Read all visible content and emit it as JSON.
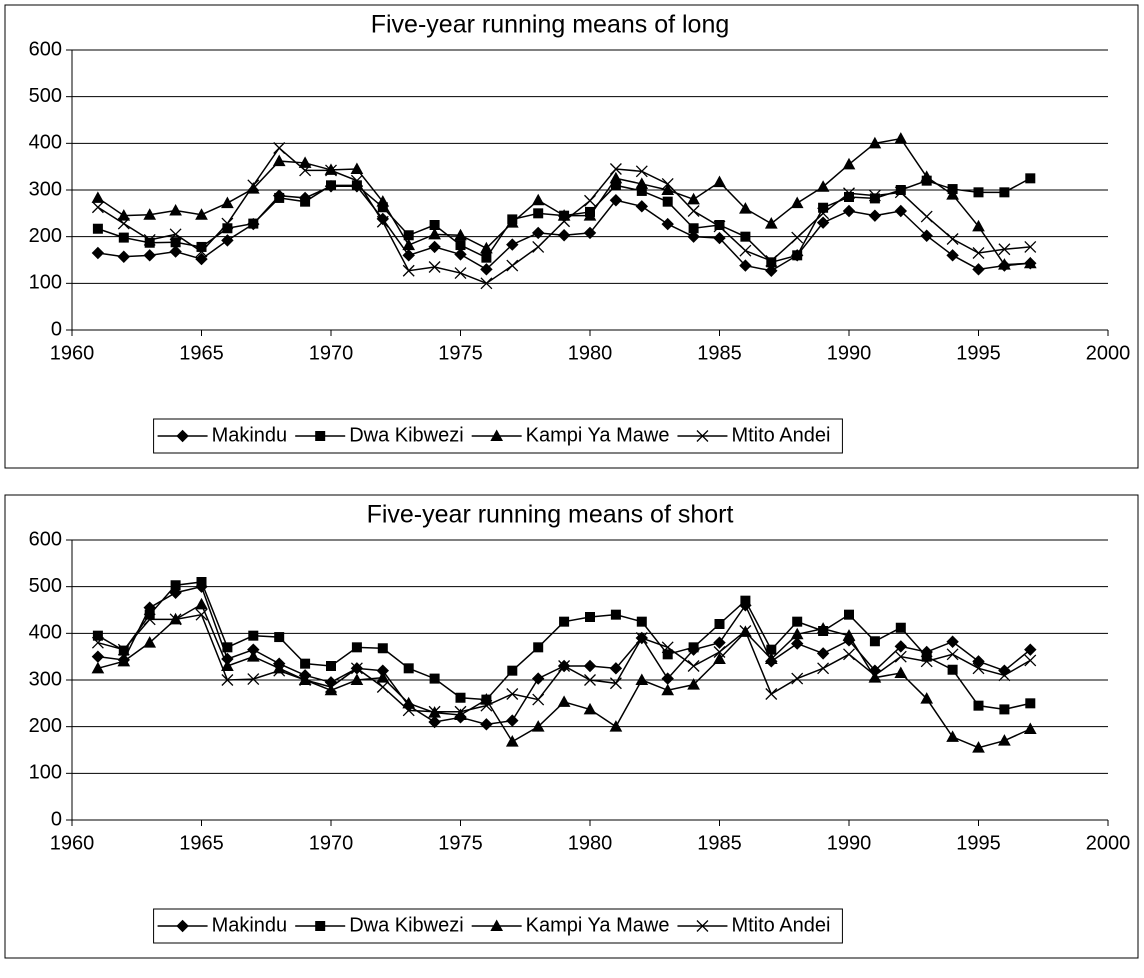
{
  "chart_data": [
    {
      "type": "line",
      "title": "Five-year running means of long",
      "x": [
        1961,
        1962,
        1963,
        1964,
        1965,
        1966,
        1967,
        1968,
        1969,
        1970,
        1971,
        1972,
        1973,
        1974,
        1975,
        1976,
        1977,
        1978,
        1979,
        1980,
        1981,
        1982,
        1983,
        1984,
        1985,
        1986,
        1987,
        1988,
        1989,
        1990,
        1991,
        1992,
        1993,
        1994,
        1995,
        1996,
        1997
      ],
      "series": [
        {
          "name": "Makindu",
          "color": "#000000",
          "marker": "diamond",
          "values": [
            165,
            157,
            160,
            168,
            152,
            192,
            227,
            288,
            283,
            308,
            308,
            238,
            160,
            178,
            162,
            130,
            183,
            208,
            203,
            208,
            278,
            265,
            227,
            200,
            197,
            138,
            127,
            160,
            230,
            255,
            245,
            255,
            202,
            160,
            130,
            138,
            143
          ]
        },
        {
          "name": "Dwa Kibwezi",
          "color": "#000000",
          "marker": "square",
          "values": [
            217,
            198,
            187,
            188,
            178,
            218,
            228,
            283,
            275,
            310,
            310,
            263,
            203,
            225,
            182,
            155,
            237,
            250,
            245,
            253,
            310,
            298,
            275,
            218,
            225,
            200,
            145,
            160,
            262,
            285,
            282,
            300,
            320,
            302,
            295,
            295,
            325
          ]
        },
        {
          "name": "Kampi Ya Mawe",
          "color": "#000000",
          "marker": "triangle",
          "values": [
            283,
            245,
            247,
            256,
            247,
            272,
            303,
            362,
            358,
            343,
            345,
            275,
            182,
            205,
            203,
            175,
            230,
            278,
            245,
            245,
            325,
            313,
            300,
            280,
            317,
            260,
            228,
            272,
            307,
            355,
            400,
            410,
            328,
            290,
            222,
            140,
            143
          ]
        },
        {
          "name": "Mtito Andei",
          "color": "#000000",
          "marker": "x",
          "values": [
            263,
            228,
            193,
            205,
            168,
            228,
            310,
            390,
            342,
            342,
            320,
            232,
            127,
            135,
            122,
            100,
            138,
            178,
            233,
            277,
            345,
            340,
            313,
            255,
            222,
            170,
            148,
            198,
            250,
            293,
            288,
            295,
            243,
            195,
            165,
            173,
            178
          ]
        }
      ],
      "xlim": [
        1960,
        2000
      ],
      "xticks": [
        1960,
        1965,
        1970,
        1975,
        1980,
        1985,
        1990,
        1995,
        2000
      ],
      "ylim": [
        0,
        600
      ],
      "yticks": [
        0,
        100,
        200,
        300,
        400,
        500,
        600
      ],
      "grid": true,
      "legend": "bottom"
    },
    {
      "type": "line",
      "title": "Five-year running means of short",
      "x": [
        1961,
        1962,
        1963,
        1964,
        1965,
        1966,
        1967,
        1968,
        1969,
        1970,
        1971,
        1972,
        1973,
        1974,
        1975,
        1976,
        1977,
        1978,
        1979,
        1980,
        1981,
        1982,
        1983,
        1984,
        1985,
        1986,
        1987,
        1988,
        1989,
        1990,
        1991,
        1992,
        1993,
        1994,
        1995,
        1996,
        1997
      ],
      "series": [
        {
          "name": "Makindu",
          "color": "#000000",
          "marker": "diamond",
          "values": [
            350,
            343,
            455,
            487,
            500,
            345,
            365,
            335,
            310,
            295,
            325,
            320,
            245,
            210,
            220,
            205,
            213,
            303,
            330,
            330,
            325,
            390,
            303,
            365,
            380,
            460,
            340,
            378,
            357,
            385,
            320,
            372,
            360,
            382,
            340,
            320,
            365
          ]
        },
        {
          "name": "Dwa Kibwezi",
          "color": "#000000",
          "marker": "square",
          "values": [
            395,
            363,
            440,
            503,
            510,
            370,
            395,
            392,
            335,
            330,
            370,
            368,
            325,
            303,
            262,
            258,
            320,
            370,
            425,
            435,
            440,
            425,
            355,
            370,
            420,
            470,
            365,
            425,
            405,
            440,
            383,
            412,
            350,
            322,
            245,
            237,
            250
          ]
        },
        {
          "name": "Kampi Ya Mawe",
          "color": "#000000",
          "marker": "triangle",
          "values": [
            325,
            340,
            380,
            430,
            462,
            330,
            350,
            325,
            300,
            278,
            300,
            305,
            250,
            230,
            225,
            258,
            168,
            200,
            253,
            237,
            200,
            300,
            278,
            290,
            345,
            403,
            345,
            398,
            410,
            395,
            305,
            315,
            260,
            178,
            155,
            170,
            195
          ]
        },
        {
          "name": "Mtito Andei",
          "color": "#000000",
          "marker": "x",
          "values": [
            380,
            365,
            430,
            430,
            440,
            300,
            302,
            320,
            300,
            285,
            325,
            285,
            235,
            232,
            232,
            245,
            270,
            258,
            330,
            300,
            293,
            390,
            370,
            330,
            360,
            405,
            270,
            303,
            325,
            355,
            310,
            350,
            340,
            355,
            325,
            310,
            342
          ]
        }
      ],
      "xlim": [
        1960,
        2000
      ],
      "xticks": [
        1960,
        1965,
        1970,
        1975,
        1980,
        1985,
        1990,
        1995,
        2000
      ],
      "ylim": [
        0,
        600
      ],
      "yticks": [
        0,
        100,
        200,
        300,
        400,
        500,
        600
      ],
      "grid": true,
      "legend": "bottom"
    }
  ]
}
